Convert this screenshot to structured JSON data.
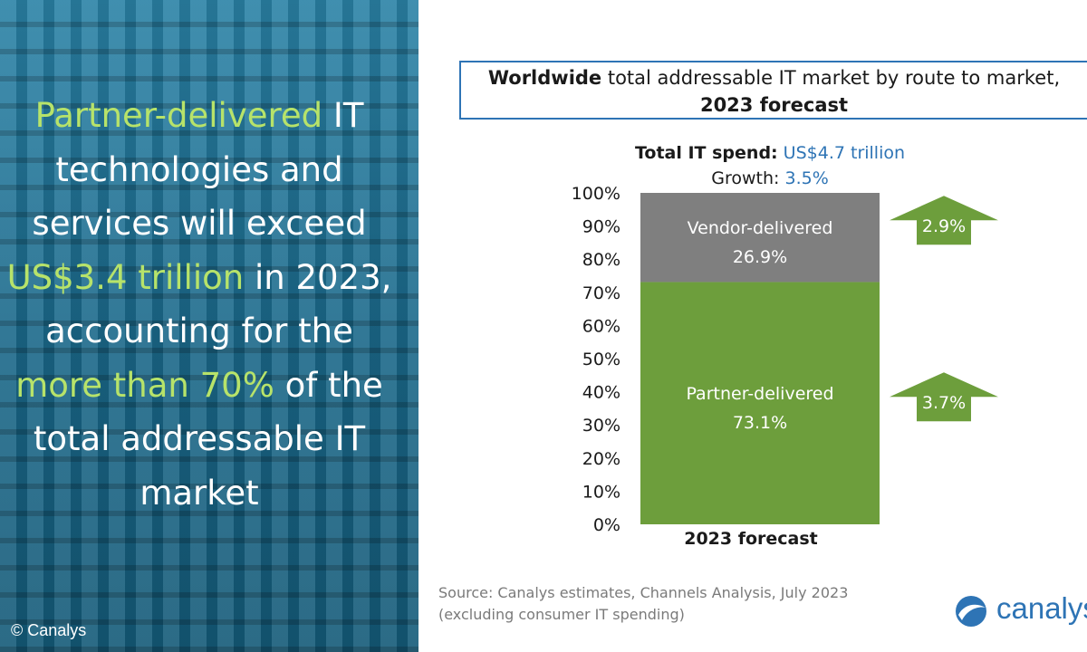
{
  "headline": {
    "part1": "Partner-delivered",
    "part2": " IT technologies and services will exceed ",
    "part3": "US$3.4 trillion",
    "part4": " in 2023, accounting for the ",
    "part5": "more than 70%",
    "part6": " of the total addressable IT market"
  },
  "copyright": "© Canalys",
  "title": {
    "bold1": "Worldwide",
    "text1": " total addressable  IT market by route to market, ",
    "bold2": "2023 forecast"
  },
  "summary": {
    "spend_label": "Total IT spend:",
    "spend_value": " US$4.7 trillion",
    "growth_label": "Growth:",
    "growth_value": " 3.5%"
  },
  "source": {
    "line1": "Source: Canalys estimates, Channels Analysis, July 2023",
    "line2": "(excluding consumer IT spending)"
  },
  "logo_text": "canalys",
  "colors": {
    "partner": "#6d9e3c",
    "vendor": "#7f7f7f",
    "accent_green": "#b7e36a",
    "accent_blue": "#2e74b5"
  },
  "chart_data": {
    "type": "bar",
    "stacked": true,
    "categories": [
      "2023 forecast"
    ],
    "series": [
      {
        "name": "Partner-delivered",
        "values": [
          73.1
        ],
        "label": "73.1%",
        "growth": "3.7%"
      },
      {
        "name": "Vendor-delivered",
        "values": [
          26.9
        ],
        "label": "26.9%",
        "growth": "2.9%"
      }
    ],
    "ylim": [
      0,
      100
    ],
    "yticks": [
      "0%",
      "10%",
      "20%",
      "30%",
      "40%",
      "50%",
      "60%",
      "70%",
      "80%",
      "90%",
      "100%"
    ],
    "xlabel": "",
    "ylabel": "",
    "grid": false
  }
}
